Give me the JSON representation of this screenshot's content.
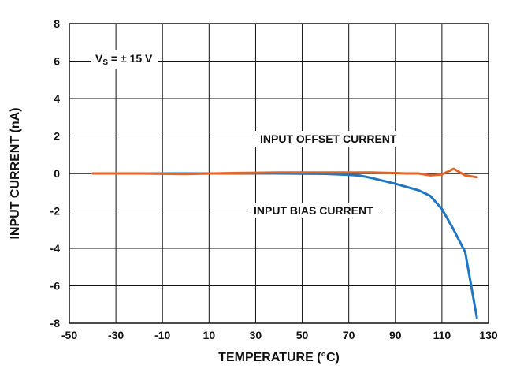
{
  "chart_data": {
    "type": "line",
    "xlabel": "TEMPERATURE (°C)",
    "ylabel": "INPUT CURRENT (nA)",
    "xlim": [
      -50,
      130
    ],
    "ylim": [
      -8,
      8
    ],
    "xticks": [
      -50,
      -30,
      -10,
      10,
      30,
      50,
      70,
      90,
      110,
      130
    ],
    "yticks": [
      8,
      6,
      4,
      2,
      0,
      -2,
      -4,
      -6,
      -8
    ],
    "grid": true,
    "annotations": {
      "supply": {
        "main": "V",
        "sub": "S",
        "rest": " = ± 15 V"
      },
      "offset_label": "INPUT OFFSET CURRENT",
      "bias_label": "INPUT BIAS CURRENT"
    },
    "series": [
      {
        "name": "INPUT BIAS CURRENT",
        "color": "#1f77c4",
        "x": [
          -40,
          -20,
          0,
          20,
          40,
          60,
          70,
          75,
          80,
          90,
          100,
          105,
          110,
          115,
          120,
          125
        ],
        "y": [
          0.0,
          0.0,
          0.0,
          0.0,
          0.0,
          -0.02,
          -0.07,
          -0.12,
          -0.25,
          -0.55,
          -0.9,
          -1.2,
          -1.9,
          -3.0,
          -4.2,
          -7.7
        ]
      },
      {
        "name": "INPUT OFFSET CURRENT",
        "color": "#e0662a",
        "x": [
          -40,
          -20,
          0,
          20,
          40,
          60,
          80,
          95,
          100,
          105,
          110,
          115,
          120,
          125
        ],
        "y": [
          0.0,
          0.0,
          -0.03,
          0.02,
          0.05,
          0.05,
          0.05,
          0.0,
          0.0,
          -0.1,
          -0.05,
          0.25,
          -0.1,
          -0.2
        ]
      }
    ]
  }
}
